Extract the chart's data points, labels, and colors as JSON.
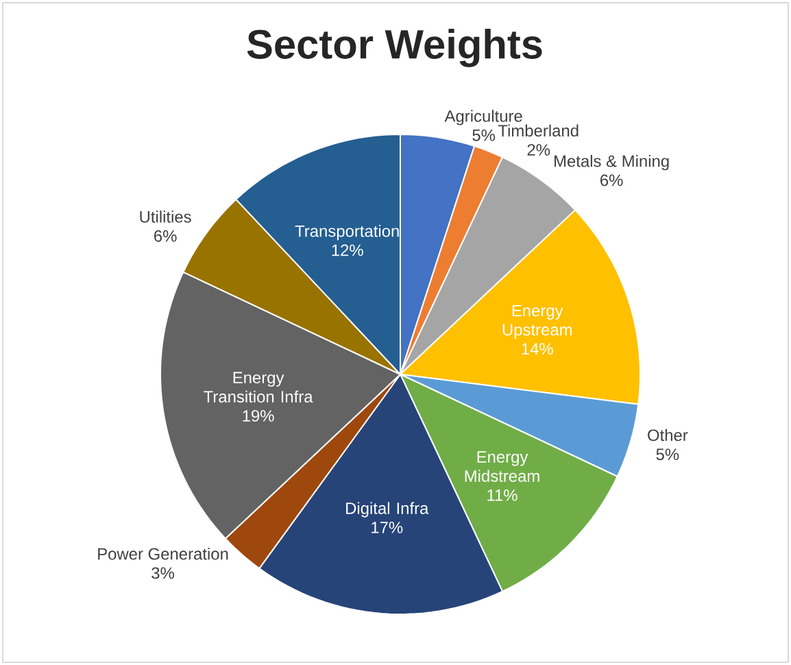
{
  "chart_data": {
    "type": "pie",
    "title": "Sector Weights",
    "categories": [
      "Agriculture",
      "Timberland",
      "Metals & Mining",
      "Energy Upstream",
      "Other",
      "Energy Midstream",
      "Digital Infra",
      "Power Generation",
      "Energy Transition Infra",
      "Utilities",
      "Transportation"
    ],
    "values": [
      5,
      2,
      6,
      14,
      5,
      11,
      17,
      3,
      19,
      6,
      12
    ],
    "value_labels": [
      "5%",
      "2%",
      "6%",
      "14%",
      "5%",
      "11%",
      "17%",
      "3%",
      "19%",
      "6%",
      "12%"
    ],
    "colors": [
      "#4472c4",
      "#ed7d31",
      "#a5a5a5",
      "#ffc000",
      "#5b9bd5",
      "#70ad47",
      "#264478",
      "#9e480e",
      "#636363",
      "#997300",
      "#255e91"
    ]
  }
}
